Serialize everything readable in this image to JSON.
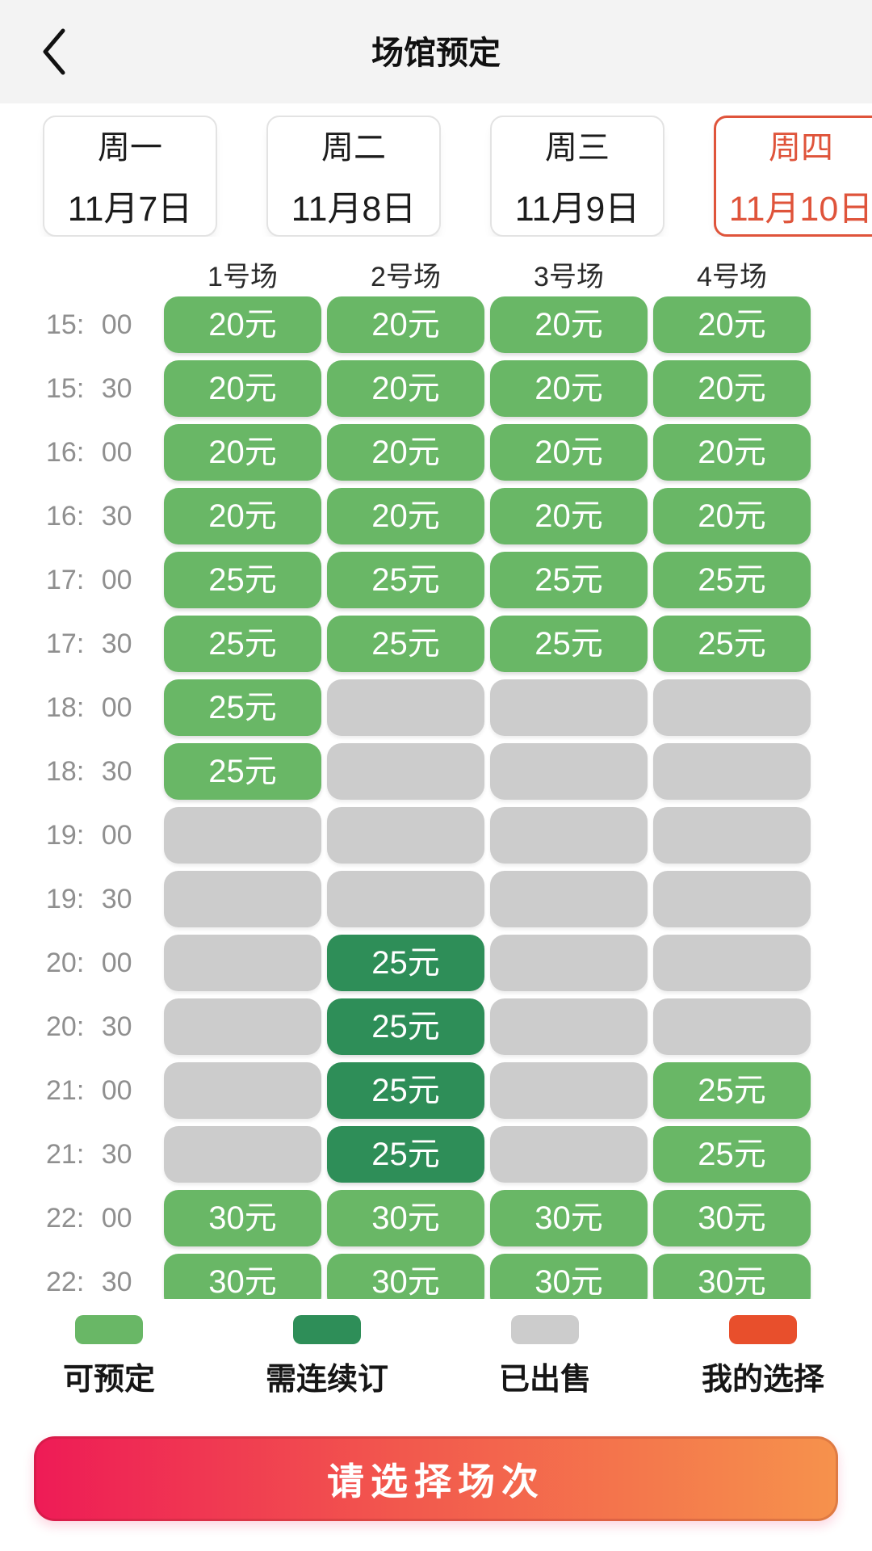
{
  "header": {
    "title": "场馆预定",
    "back_icon": "chevron-left"
  },
  "dates": [
    {
      "weekday": "周一",
      "date": "11月7日",
      "selected": false
    },
    {
      "weekday": "周二",
      "date": "11月8日",
      "selected": false
    },
    {
      "weekday": "周三",
      "date": "11月9日",
      "selected": false
    },
    {
      "weekday": "周四",
      "date": "11月10日",
      "selected": true
    }
  ],
  "courts": [
    "1号场",
    "2号场",
    "3号场",
    "4号场"
  ],
  "schedule": {
    "rows": [
      {
        "time": "15: 00",
        "cells": [
          {
            "state": "available",
            "label": "20元"
          },
          {
            "state": "available",
            "label": "20元"
          },
          {
            "state": "available",
            "label": "20元"
          },
          {
            "state": "available",
            "label": "20元"
          }
        ]
      },
      {
        "time": "15: 30",
        "cells": [
          {
            "state": "available",
            "label": "20元"
          },
          {
            "state": "available",
            "label": "20元"
          },
          {
            "state": "available",
            "label": "20元"
          },
          {
            "state": "available",
            "label": "20元"
          }
        ]
      },
      {
        "time": "16: 00",
        "cells": [
          {
            "state": "available",
            "label": "20元"
          },
          {
            "state": "available",
            "label": "20元"
          },
          {
            "state": "available",
            "label": "20元"
          },
          {
            "state": "available",
            "label": "20元"
          }
        ]
      },
      {
        "time": "16: 30",
        "cells": [
          {
            "state": "available",
            "label": "20元"
          },
          {
            "state": "available",
            "label": "20元"
          },
          {
            "state": "available",
            "label": "20元"
          },
          {
            "state": "available",
            "label": "20元"
          }
        ]
      },
      {
        "time": "17: 00",
        "cells": [
          {
            "state": "available",
            "label": "25元"
          },
          {
            "state": "available",
            "label": "25元"
          },
          {
            "state": "available",
            "label": "25元"
          },
          {
            "state": "available",
            "label": "25元"
          }
        ]
      },
      {
        "time": "17: 30",
        "cells": [
          {
            "state": "available",
            "label": "25元"
          },
          {
            "state": "available",
            "label": "25元"
          },
          {
            "state": "available",
            "label": "25元"
          },
          {
            "state": "available",
            "label": "25元"
          }
        ]
      },
      {
        "time": "18: 00",
        "cells": [
          {
            "state": "available",
            "label": "25元"
          },
          {
            "state": "sold",
            "label": ""
          },
          {
            "state": "sold",
            "label": ""
          },
          {
            "state": "sold",
            "label": ""
          }
        ]
      },
      {
        "time": "18: 30",
        "cells": [
          {
            "state": "available",
            "label": "25元"
          },
          {
            "state": "sold",
            "label": ""
          },
          {
            "state": "sold",
            "label": ""
          },
          {
            "state": "sold",
            "label": ""
          }
        ]
      },
      {
        "time": "19: 00",
        "cells": [
          {
            "state": "sold",
            "label": ""
          },
          {
            "state": "sold",
            "label": ""
          },
          {
            "state": "sold",
            "label": ""
          },
          {
            "state": "sold",
            "label": ""
          }
        ]
      },
      {
        "time": "19: 30",
        "cells": [
          {
            "state": "sold",
            "label": ""
          },
          {
            "state": "sold",
            "label": ""
          },
          {
            "state": "sold",
            "label": ""
          },
          {
            "state": "sold",
            "label": ""
          }
        ]
      },
      {
        "time": "20: 00",
        "cells": [
          {
            "state": "sold",
            "label": ""
          },
          {
            "state": "consecutive",
            "label": "25元"
          },
          {
            "state": "sold",
            "label": ""
          },
          {
            "state": "sold",
            "label": ""
          }
        ]
      },
      {
        "time": "20: 30",
        "cells": [
          {
            "state": "sold",
            "label": ""
          },
          {
            "state": "consecutive",
            "label": "25元"
          },
          {
            "state": "sold",
            "label": ""
          },
          {
            "state": "sold",
            "label": ""
          }
        ]
      },
      {
        "time": "21: 00",
        "cells": [
          {
            "state": "sold",
            "label": ""
          },
          {
            "state": "consecutive",
            "label": "25元"
          },
          {
            "state": "sold",
            "label": ""
          },
          {
            "state": "available",
            "label": "25元"
          }
        ]
      },
      {
        "time": "21: 30",
        "cells": [
          {
            "state": "sold",
            "label": ""
          },
          {
            "state": "consecutive",
            "label": "25元"
          },
          {
            "state": "sold",
            "label": ""
          },
          {
            "state": "available",
            "label": "25元"
          }
        ]
      },
      {
        "time": "22: 00",
        "cells": [
          {
            "state": "available",
            "label": "30元"
          },
          {
            "state": "available",
            "label": "30元"
          },
          {
            "state": "available",
            "label": "30元"
          },
          {
            "state": "available",
            "label": "30元"
          }
        ]
      },
      {
        "time": "22: 30",
        "cells": [
          {
            "state": "available",
            "label": "30元"
          },
          {
            "state": "available",
            "label": "30元"
          },
          {
            "state": "available",
            "label": "30元"
          },
          {
            "state": "available",
            "label": "30元"
          }
        ]
      }
    ]
  },
  "legend": [
    {
      "label": "可预定",
      "color": "#69b766"
    },
    {
      "label": "需连续订",
      "color": "#2e8e58"
    },
    {
      "label": "已出售",
      "color": "#cccccc"
    },
    {
      "label": "我的选择",
      "color": "#e84f2c"
    }
  ],
  "action_button": {
    "label": "请选择场次"
  },
  "colors": {
    "accent_selected_date": "#df543b",
    "available_green": "#69b766",
    "consecutive_green": "#2e8e58",
    "sold_gray": "#cccccc",
    "my_choice_orange": "#e84f2c",
    "button_gradient_start": "#ee1b56",
    "button_gradient_end": "#f6924c"
  }
}
